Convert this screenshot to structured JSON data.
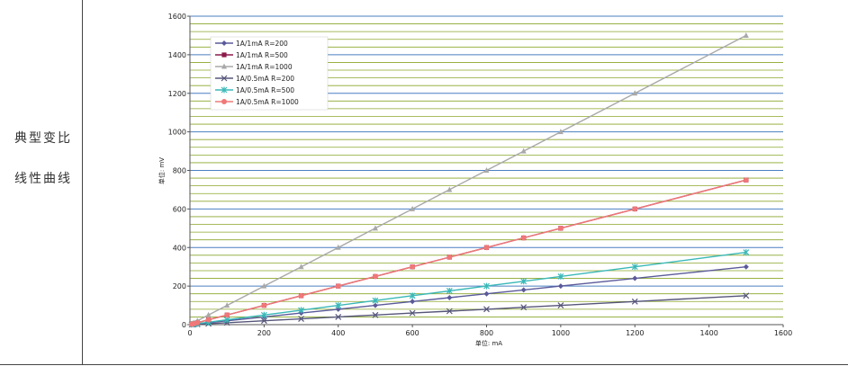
{
  "side_text": {
    "line1": "典型变比",
    "line2": "线性曲线"
  },
  "chart_data": {
    "type": "line",
    "xlabel": "单位: mA",
    "ylabel": "单位: mV",
    "xlim": [
      0,
      1600
    ],
    "ylim": [
      0,
      1600
    ],
    "xticks": [
      0,
      200,
      400,
      600,
      800,
      1000,
      1200,
      1400,
      1600
    ],
    "yticks": [
      0,
      200,
      400,
      600,
      800,
      1000,
      1200,
      1400,
      1600
    ],
    "grid": true,
    "legend_position": "top-left",
    "x": [
      5,
      10,
      20,
      50,
      100,
      200,
      300,
      400,
      500,
      600,
      700,
      800,
      900,
      1000,
      1200,
      1500
    ],
    "series": [
      {
        "name": "1A/1mA  R=200",
        "color": "#5a5a9a",
        "marker": "diamond",
        "values": [
          1,
          2,
          4,
          10,
          20,
          40,
          60,
          80,
          100,
          120,
          140,
          160,
          180,
          200,
          240,
          300
        ]
      },
      {
        "name": "1A/1mA  R=500",
        "color": "#8b1a4a",
        "marker": "square",
        "values": [
          2.5,
          5,
          10,
          25,
          50,
          100,
          150,
          200,
          250,
          300,
          350,
          400,
          450,
          500,
          600,
          750
        ]
      },
      {
        "name": "1A/1mA  R=1000",
        "color": "#a8a8a8",
        "marker": "triangle",
        "values": [
          5,
          10,
          20,
          50,
          100,
          200,
          300,
          400,
          500,
          600,
          700,
          800,
          900,
          1000,
          1200,
          1500
        ]
      },
      {
        "name": "1A/0.5mA  R=200",
        "color": "#55557a",
        "marker": "x",
        "values": [
          0.5,
          1,
          2,
          5,
          10,
          20,
          30,
          40,
          50,
          60,
          70,
          80,
          90,
          100,
          120,
          150
        ]
      },
      {
        "name": "1A/0.5mA  R=500",
        "color": "#3ab8b8",
        "marker": "star",
        "values": [
          1.25,
          2.5,
          5,
          12.5,
          25,
          50,
          75,
          100,
          125,
          150,
          175,
          200,
          225,
          250,
          300,
          375
        ]
      },
      {
        "name": "1A/0.5mA  R=1000",
        "color": "#f07878",
        "marker": "circle",
        "values": [
          2.5,
          5,
          10,
          25,
          50,
          100,
          150,
          200,
          250,
          300,
          350,
          400,
          450,
          500,
          600,
          750
        ]
      }
    ]
  }
}
